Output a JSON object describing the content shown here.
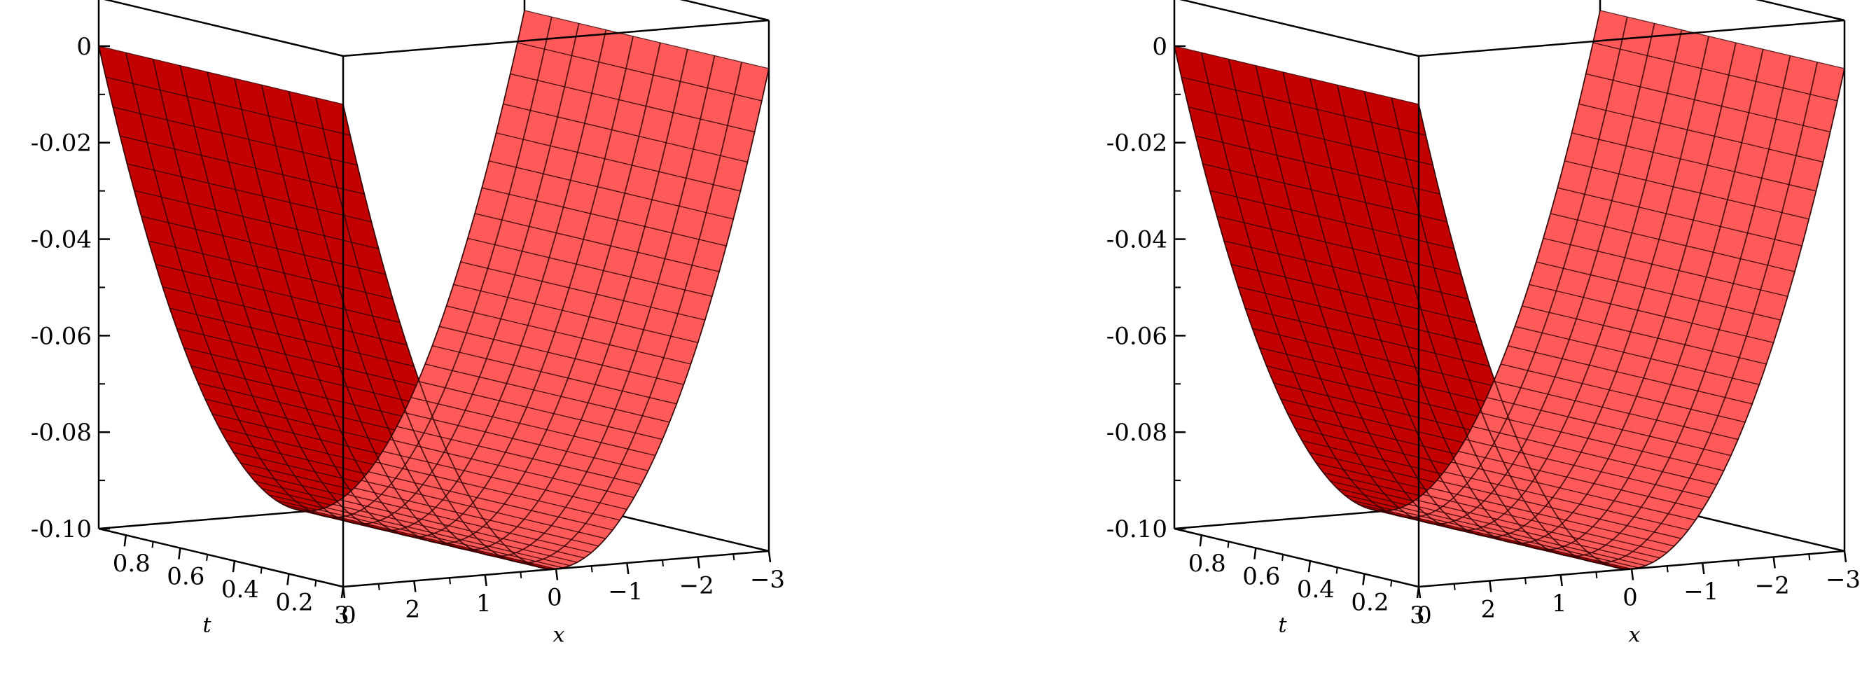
{
  "colors": {
    "surface_front": "#c30000",
    "surface_back": "#ff5a5a",
    "mesh": "#300000",
    "box": "#000000"
  },
  "chart_data": [
    {
      "type": "surface3d",
      "function": "z = x^2/90 - 0.1",
      "x": {
        "label": "x",
        "range": [
          -3,
          3
        ],
        "ticks": [
          3,
          2,
          1,
          0,
          -1,
          -2,
          -3
        ],
        "tick_labels": [
          "3",
          "2",
          "1",
          "0",
          "−1",
          "−2",
          "−3"
        ]
      },
      "t": {
        "label": "t",
        "range": [
          0,
          0.9
        ],
        "ticks": [
          0,
          0.2,
          0.4,
          0.6,
          0.8
        ],
        "tick_labels": [
          "0",
          "0.2",
          "0.4",
          "0.6",
          "0.8"
        ]
      },
      "z": {
        "range": [
          -0.1,
          0.01
        ],
        "ticks": [
          0,
          -0.02,
          -0.04,
          -0.06,
          -0.08,
          -0.1
        ],
        "tick_labels": [
          "0",
          "-0.02",
          "-0.04",
          "-0.06",
          "-0.08",
          "-0.10"
        ]
      }
    },
    {
      "type": "surface3d",
      "function": "z = x^2/90 - 0.1",
      "x": {
        "label": "x",
        "range": [
          -3,
          3
        ],
        "ticks": [
          3,
          2,
          1,
          0,
          -1,
          -2,
          -3
        ],
        "tick_labels": [
          "3",
          "2",
          "1",
          "0",
          "−1",
          "−2",
          "−3"
        ]
      },
      "t": {
        "label": "t",
        "range": [
          0,
          0.9
        ],
        "ticks": [
          0,
          0.2,
          0.4,
          0.6,
          0.8
        ],
        "tick_labels": [
          "0",
          "0.2",
          "0.4",
          "0.6",
          "0.8"
        ]
      },
      "z": {
        "range": [
          -0.1,
          0.01
        ],
        "ticks": [
          0,
          -0.02,
          -0.04,
          -0.06,
          -0.08,
          -0.1
        ],
        "tick_labels": [
          "0",
          "-0.02",
          "-0.04",
          "-0.06",
          "-0.08",
          "-0.10"
        ]
      }
    }
  ]
}
